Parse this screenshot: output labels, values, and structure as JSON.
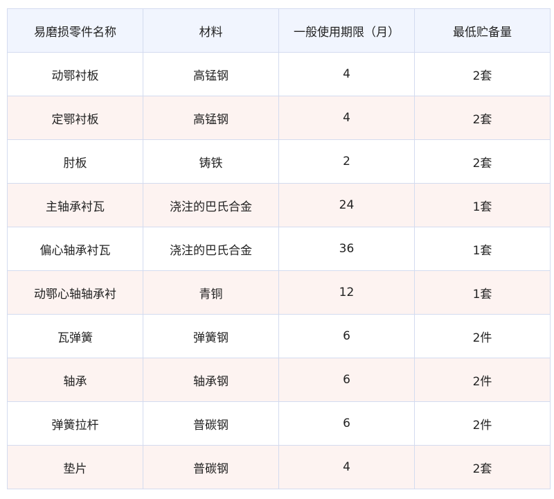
{
  "table": {
    "headers": [
      "易磨损零件名称",
      "材料",
      "一般使用期限（月）",
      "最低贮备量"
    ],
    "rows": [
      [
        "动鄂衬板",
        "高锰钢",
        "4",
        "2套"
      ],
      [
        "定鄂衬板",
        "高锰钢",
        "4",
        "2套"
      ],
      [
        "肘板",
        "铸铁",
        "2",
        "2套"
      ],
      [
        "主轴承衬瓦",
        "浇注的巴氏合金",
        "24",
        "1套"
      ],
      [
        "偏心轴承衬瓦",
        "浇注的巴氏合金",
        "36",
        "1套"
      ],
      [
        "动鄂心轴轴承衬",
        "青铜",
        "12",
        "1套"
      ],
      [
        "瓦弹簧",
        "弹簧钢",
        "6",
        "2件"
      ],
      [
        "轴承",
        "轴承钢",
        "6",
        "2件"
      ],
      [
        "弹簧拉杆",
        "普碳钢",
        "6",
        "2件"
      ],
      [
        "垫片",
        "普碳钢",
        "4",
        "2套"
      ]
    ]
  },
  "colors": {
    "header_bg": "#f1f5fe",
    "stripe_bg": "#fdf3f1",
    "border": "#d3dbef"
  }
}
